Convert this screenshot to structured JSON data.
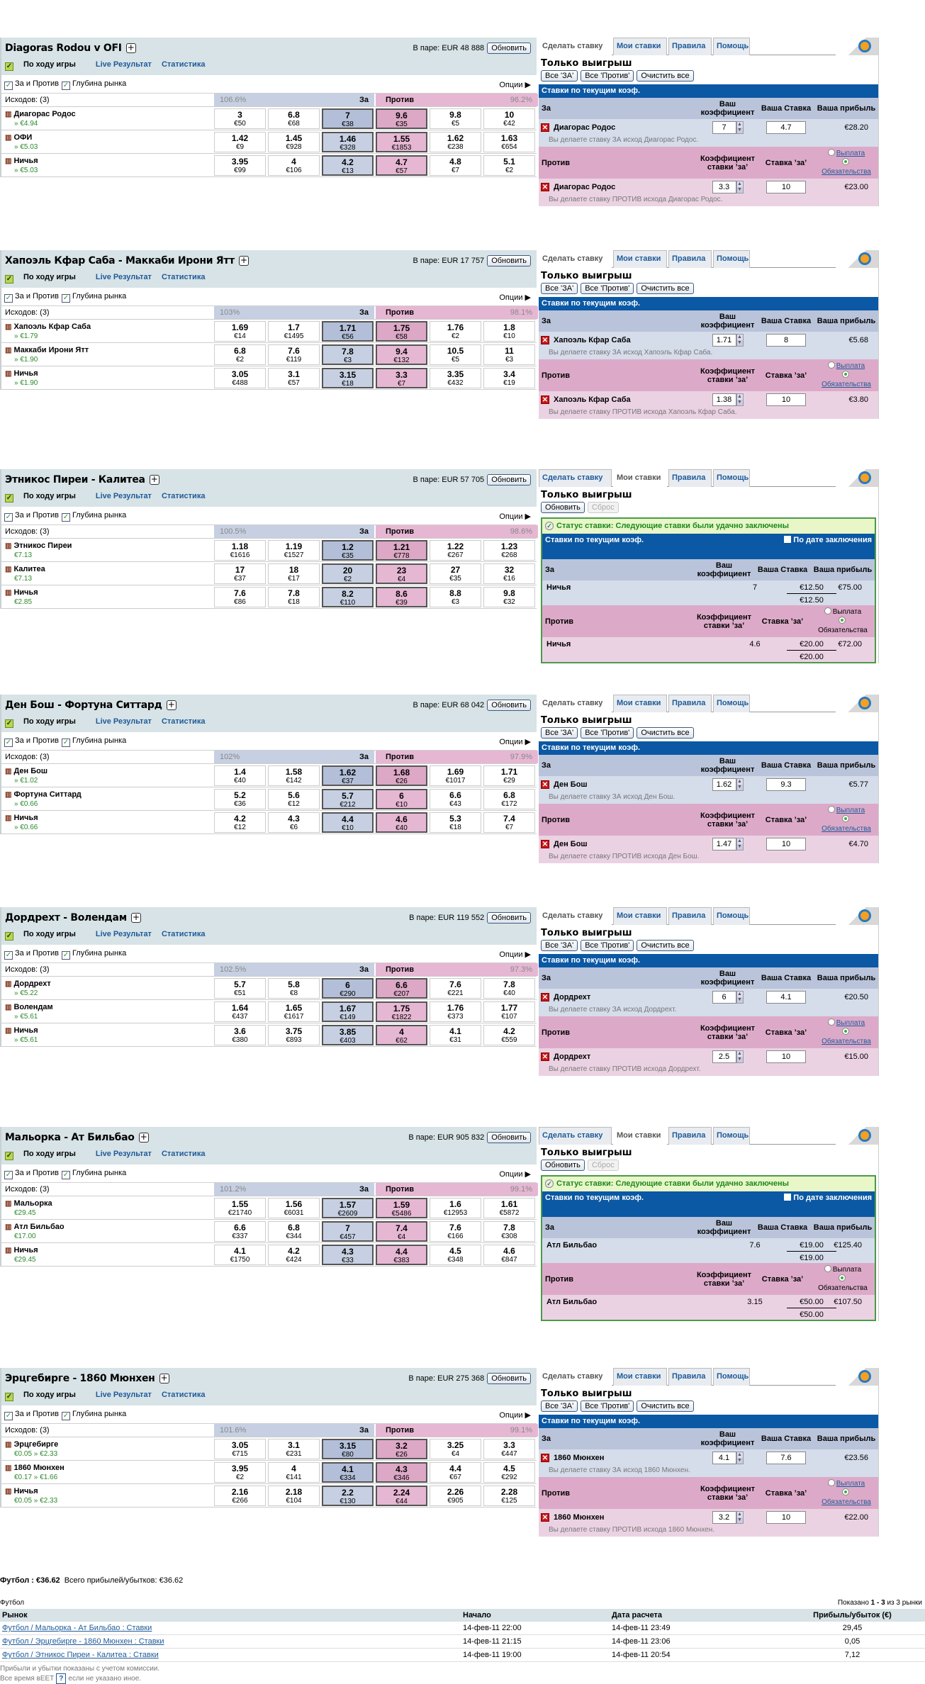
{
  "common": {
    "refresh": "Обновить",
    "inplay": "По ходу игры",
    "live": "Live Результат",
    "stats": "Статистика",
    "back_lay": "За и Против",
    "depth": "Глубина рынка",
    "options": "Опции",
    "za": "За",
    "protiv": "Против",
    "tabs": [
      "Сделать ставку",
      "Мои ставки",
      "Правила",
      "Помощь"
    ],
    "win_only": "Только выигрыш",
    "all_back": "Все 'ЗА'",
    "all_lay": "Все 'Против'",
    "clear_all": "Очистить все",
    "reset": "Сброс",
    "current_odds": "Ставки по текущим коэф.",
    "your_odds": "Ваш коэффициент",
    "your_stake": "Ваша Ставка",
    "your_profit": "Ваша прибыль",
    "backer_odds": "Коэффициент ставки ’за’",
    "backer_stake": "Ставка ’за’",
    "payout": "Выплата",
    "liability": "Обязательства",
    "status": "Статус ставки: Следующие ставки были удачно заключены",
    "by_date": "По дате заключения"
  },
  "markets": [
    {
      "title": "Diagoras Rodou v OFI",
      "pool": "В паре: EUR 48 888",
      "outcomes": "Исходов:  (3)",
      "back_pct": "106.6%",
      "lay_pct": "96.2%",
      "runners": [
        {
          "name": "Диагорас Родос",
          "pl": "» €4.94",
          "prices": [
            [
              "3",
              "€50"
            ],
            [
              "6.8",
              "€68"
            ],
            [
              "7",
              "€38"
            ],
            [
              "9.6",
              "€35"
            ],
            [
              "9.8",
              "€5"
            ],
            [
              "10",
              "€42"
            ]
          ]
        },
        {
          "name": "ОФИ",
          "pl": "» €5.03",
          "prices": [
            [
              "1.42",
              "€9"
            ],
            [
              "1.45",
              "€928"
            ],
            [
              "1.46",
              "€328"
            ],
            [
              "1.55",
              "€1853"
            ],
            [
              "1.62",
              "€238"
            ],
            [
              "1.63",
              "€654"
            ]
          ]
        },
        {
          "name": "Ничья",
          "pl": "» €5.03",
          "prices": [
            [
              "3.95",
              "€99"
            ],
            [
              "4",
              "€106"
            ],
            [
              "4.2",
              "€13"
            ],
            [
              "4.7",
              "€57"
            ],
            [
              "4.8",
              "€7"
            ],
            [
              "5.1",
              "€2"
            ]
          ]
        }
      ],
      "slip": {
        "mode": "place",
        "back": {
          "name": "Диагорас Родос",
          "odds": "7",
          "stake": "4.7",
          "profit": "€28.20",
          "note": "Вы делаете ставку ЗА исход Диагорас Родос."
        },
        "lay": {
          "name": "Диагорас Родос",
          "odds": "3.3",
          "stake": "10",
          "profit": "€23.00",
          "note": "Вы делаете ставку ПРОТИВ исхода Диагорас Родос."
        }
      }
    },
    {
      "title": "Хапоэль Кфар Саба - Маккаби Ирони Ятт",
      "pool": "В паре: EUR 17 757",
      "outcomes": "Исходов:  (3)",
      "back_pct": "103%",
      "lay_pct": "98.1%",
      "runners": [
        {
          "name": "Хапоэль Кфар Саба",
          "pl": "» €1.79",
          "prices": [
            [
              "1.69",
              "€14"
            ],
            [
              "1.7",
              "€1495"
            ],
            [
              "1.71",
              "€56"
            ],
            [
              "1.75",
              "€58"
            ],
            [
              "1.76",
              "€2"
            ],
            [
              "1.8",
              "€10"
            ]
          ]
        },
        {
          "name": "Маккаби Ирони Ятт",
          "pl": "» €1.90",
          "prices": [
            [
              "6.8",
              "€2"
            ],
            [
              "7.6",
              "€119"
            ],
            [
              "7.8",
              "€3"
            ],
            [
              "9.4",
              "€132"
            ],
            [
              "10.5",
              "€5"
            ],
            [
              "11",
              "€3"
            ]
          ]
        },
        {
          "name": "Ничья",
          "pl": "» €1.90",
          "prices": [
            [
              "3.05",
              "€488"
            ],
            [
              "3.1",
              "€57"
            ],
            [
              "3.15",
              "€18"
            ],
            [
              "3.3",
              "€7"
            ],
            [
              "3.35",
              "€432"
            ],
            [
              "3.4",
              "€19"
            ]
          ]
        }
      ],
      "slip": {
        "mode": "place",
        "back": {
          "name": "Хапоэль Кфар Саба",
          "odds": "1.71",
          "stake": "8",
          "profit": "€5.68",
          "note": "Вы делаете ставку ЗА исход Хапоэль Кфар Саба."
        },
        "lay": {
          "name": "Хапоэль Кфар Саба",
          "odds": "1.38",
          "stake": "10",
          "profit": "€3.80",
          "note": "Вы делаете ставку ПРОТИВ исхода Хапоэль Кфар Саба."
        }
      }
    },
    {
      "title": "Этникос Пиреи - Калитеа",
      "pool": "В паре: EUR 57 705",
      "outcomes": "Исходов:  (3)",
      "back_pct": "100.5%",
      "lay_pct": "98.6%",
      "runners": [
        {
          "name": "Этникос Пиреи",
          "pl": "€7.13",
          "prices": [
            [
              "1.18",
              "€1616"
            ],
            [
              "1.19",
              "€1527"
            ],
            [
              "1.2",
              "€35"
            ],
            [
              "1.21",
              "€778"
            ],
            [
              "1.22",
              "€267"
            ],
            [
              "1.23",
              "€268"
            ]
          ]
        },
        {
          "name": "Калитеа",
          "pl": "€7.13",
          "prices": [
            [
              "17",
              "€37"
            ],
            [
              "18",
              "€17"
            ],
            [
              "20",
              "€2"
            ],
            [
              "23",
              "€4"
            ],
            [
              "27",
              "€35"
            ],
            [
              "32",
              "€16"
            ]
          ]
        },
        {
          "name": "Ничья",
          "pl": "€2.85",
          "prices": [
            [
              "7.6",
              "€86"
            ],
            [
              "7.8",
              "€18"
            ],
            [
              "8.2",
              "€110"
            ],
            [
              "8.6",
              "€39"
            ],
            [
              "8.8",
              "€3"
            ],
            [
              "9.8",
              "€32"
            ]
          ]
        }
      ],
      "slip": {
        "mode": "mybets",
        "back": {
          "name": "Ничья",
          "odds": "7",
          "stake": "€12.50",
          "total": "€12.50",
          "profit": "€75.00"
        },
        "lay": {
          "name": "Ничья",
          "odds": "4.6",
          "stake": "€20.00",
          "total": "€20.00",
          "profit": "€72.00"
        }
      }
    },
    {
      "title": "Ден Бош - Фортуна Ситтард",
      "pool": "В паре: EUR 68 042",
      "outcomes": "Исходов:  (3)",
      "back_pct": "102%",
      "lay_pct": "97.9%",
      "runners": [
        {
          "name": "Ден Бош",
          "pl": "» €1.02",
          "prices": [
            [
              "1.4",
              "€40"
            ],
            [
              "1.58",
              "€142"
            ],
            [
              "1.62",
              "€37"
            ],
            [
              "1.68",
              "€26"
            ],
            [
              "1.69",
              "€1017"
            ],
            [
              "1.71",
              "€29"
            ]
          ]
        },
        {
          "name": "Фортуна Ситтард",
          "pl": "» €0.66",
          "prices": [
            [
              "5.2",
              "€36"
            ],
            [
              "5.6",
              "€12"
            ],
            [
              "5.7",
              "€212"
            ],
            [
              "6",
              "€10"
            ],
            [
              "6.6",
              "€43"
            ],
            [
              "6.8",
              "€172"
            ]
          ]
        },
        {
          "name": "Ничья",
          "pl": "» €0.66",
          "prices": [
            [
              "4.2",
              "€12"
            ],
            [
              "4.3",
              "€6"
            ],
            [
              "4.4",
              "€10"
            ],
            [
              "4.6",
              "€40"
            ],
            [
              "5.3",
              "€18"
            ],
            [
              "7.4",
              "€7"
            ]
          ]
        }
      ],
      "slip": {
        "mode": "place",
        "back": {
          "name": "Ден Бош",
          "odds": "1.62",
          "stake": "9.3",
          "profit": "€5.77",
          "note": "Вы делаете ставку ЗА исход Ден Бош."
        },
        "lay": {
          "name": "Ден Бош",
          "odds": "1.47",
          "stake": "10",
          "profit": "€4.70",
          "note": "Вы делаете ставку ПРОТИВ исхода Ден Бош."
        }
      }
    },
    {
      "title": "Дордрехт - Волендам",
      "pool": "В паре: EUR 119 552",
      "outcomes": "Исходов:  (3)",
      "back_pct": "102.5%",
      "lay_pct": "97.3%",
      "runners": [
        {
          "name": "Дордрехт",
          "pl": "» €5.22",
          "prices": [
            [
              "5.7",
              "€51"
            ],
            [
              "5.8",
              "€8"
            ],
            [
              "6",
              "€290"
            ],
            [
              "6.6",
              "€207"
            ],
            [
              "7.6",
              "€221"
            ],
            [
              "7.8",
              "€40"
            ]
          ]
        },
        {
          "name": "Волендам",
          "pl": "» €5.61",
          "prices": [
            [
              "1.64",
              "€437"
            ],
            [
              "1.65",
              "€1617"
            ],
            [
              "1.67",
              "€149"
            ],
            [
              "1.75",
              "€1822"
            ],
            [
              "1.76",
              "€373"
            ],
            [
              "1.77",
              "€107"
            ]
          ]
        },
        {
          "name": "Ничья",
          "pl": "» €5.61",
          "prices": [
            [
              "3.6",
              "€380"
            ],
            [
              "3.75",
              "€893"
            ],
            [
              "3.85",
              "€403"
            ],
            [
              "4",
              "€62"
            ],
            [
              "4.1",
              "€31"
            ],
            [
              "4.2",
              "€559"
            ]
          ]
        }
      ],
      "slip": {
        "mode": "place",
        "back": {
          "name": "Дордрехт",
          "odds": "6",
          "stake": "4.1",
          "profit": "€20.50",
          "note": "Вы делаете ставку ЗА исход Дордрехт."
        },
        "lay": {
          "name": "Дордрехт",
          "odds": "2.5",
          "stake": "10",
          "profit": "€15.00",
          "note": "Вы делаете ставку ПРОТИВ исхода Дордрехт."
        }
      }
    },
    {
      "title": "Мальорка - Ат Бильбао",
      "pool": "В паре: EUR 905 832",
      "outcomes": "Исходов:  (3)",
      "back_pct": "101.2%",
      "lay_pct": "99.1%",
      "runners": [
        {
          "name": "Мальорка",
          "pl": "€29.45",
          "prices": [
            [
              "1.55",
              "€21740"
            ],
            [
              "1.56",
              "€6031"
            ],
            [
              "1.57",
              "€2609"
            ],
            [
              "1.59",
              "€5486"
            ],
            [
              "1.6",
              "€12953"
            ],
            [
              "1.61",
              "€5872"
            ]
          ]
        },
        {
          "name": "Атл Бильбао",
          "pl": "€17.00",
          "prices": [
            [
              "6.6",
              "€337"
            ],
            [
              "6.8",
              "€344"
            ],
            [
              "7",
              "€457"
            ],
            [
              "7.4",
              "€4"
            ],
            [
              "7.6",
              "€166"
            ],
            [
              "7.8",
              "€308"
            ]
          ]
        },
        {
          "name": "Ничья",
          "pl": "€29.45",
          "prices": [
            [
              "4.1",
              "€1750"
            ],
            [
              "4.2",
              "€424"
            ],
            [
              "4.3",
              "€33"
            ],
            [
              "4.4",
              "€383"
            ],
            [
              "4.5",
              "€348"
            ],
            [
              "4.6",
              "€847"
            ]
          ]
        }
      ],
      "slip": {
        "mode": "mybets",
        "back": {
          "name": "Атл Бильбао",
          "odds": "7.6",
          "stake": "€19.00",
          "total": "€19.00",
          "profit": "€125.40"
        },
        "lay": {
          "name": "Атл Бильбао",
          "odds": "3.15",
          "stake": "€50.00",
          "total": "€50.00",
          "profit": "€107.50"
        }
      }
    },
    {
      "title": "Эрцгебирге - 1860 Мюнхен",
      "pool": "В паре: EUR 275 368",
      "outcomes": "Исходов:  (3)",
      "back_pct": "101.6%",
      "lay_pct": "99.1%",
      "runners": [
        {
          "name": "Эрцгебирге",
          "pl": "€0.05 » €2.33",
          "prices": [
            [
              "3.05",
              "€715"
            ],
            [
              "3.1",
              "€231"
            ],
            [
              "3.15",
              "€80"
            ],
            [
              "3.2",
              "€26"
            ],
            [
              "3.25",
              "€4"
            ],
            [
              "3.3",
              "€447"
            ]
          ]
        },
        {
          "name": "1860 Мюнхен",
          "pl": "€0.17 » €1.66",
          "prices": [
            [
              "3.95",
              "€2"
            ],
            [
              "4",
              "€141"
            ],
            [
              "4.1",
              "€334"
            ],
            [
              "4.3",
              "€346"
            ],
            [
              "4.4",
              "€67"
            ],
            [
              "4.5",
              "€292"
            ]
          ]
        },
        {
          "name": "Ничья",
          "pl": "€0.05 » €2.33",
          "prices": [
            [
              "2.16",
              "€266"
            ],
            [
              "2.18",
              "€104"
            ],
            [
              "2.2",
              "€130"
            ],
            [
              "2.24",
              "€44"
            ],
            [
              "2.26",
              "€905"
            ],
            [
              "2.28",
              "€125"
            ]
          ]
        }
      ],
      "slip": {
        "mode": "place",
        "back": {
          "name": "1860 Мюнхен",
          "odds": "4.1",
          "stake": "7.6",
          "profit": "€23.56",
          "note": "Вы делаете ставку ЗА исход 1860 Мюнхен."
        },
        "lay": {
          "name": "1860 Мюнхен",
          "odds": "3.2",
          "stake": "10",
          "profit": "€22.00",
          "note": "Вы делаете ставку ПРОТИВ исхода 1860 Мюнхен."
        }
      }
    }
  ],
  "summary": {
    "sport_total": "Футбол : €36.62",
    "total_label": "Всего прибылей/убытков:  €36.62",
    "sport": "Футбол",
    "shown_prefix": "Показано",
    "shown_range": "1 - 3",
    "shown_suffix": "из 3 рынки",
    "headers": [
      "Рынок",
      "Начало",
      "Дата расчета",
      "Прибыль/убыток (€)"
    ],
    "rows": [
      [
        "Футбол / Мальорка - Ат Бильбао : Ставки",
        "14-фев-11 22:00",
        "14-фев-11 23:49",
        "29,45"
      ],
      [
        "Футбол / Эрцгебирге - 1860 Мюнхен : Ставки",
        "14-фев-11 21:15",
        "14-фев-11 23:06",
        "0,05"
      ],
      [
        "Футбол / Этникос Пиреи - Калитеа : Ставки",
        "14-фев-11 19:00",
        "14-фев-11 20:54",
        "7,12"
      ]
    ],
    "note1": "Прибыли и убытки показаны с учетом комиссии.",
    "note2a": "Все время вЕЕТ",
    "help": "?",
    "note2b": "если не указано иное."
  }
}
